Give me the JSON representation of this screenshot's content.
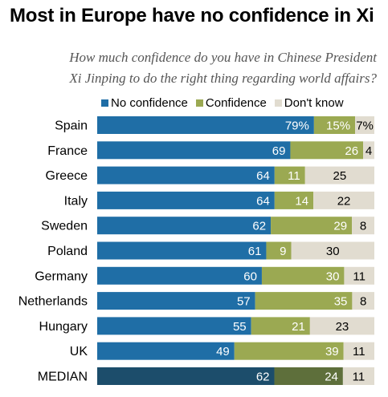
{
  "header": {
    "title": "Most in Europe have no confidence in Xi",
    "subtitle_line1": "How much confidence do you have in Chinese President",
    "subtitle_line2": "Xi Jinping to do the right thing regarding world affairs?"
  },
  "colors": {
    "no_confidence": "#1f6ea6",
    "confidence": "#9ba952",
    "dont_know": "#e1dcd0",
    "median_no_confidence": "#1c4d6b",
    "median_confidence": "#5e6f3b",
    "median_dont_know": "#e1dcd0"
  },
  "chart_data": {
    "type": "bar",
    "orientation": "horizontal",
    "stacked": true,
    "categories": [
      "Spain",
      "France",
      "Greece",
      "Italy",
      "Sweden",
      "Poland",
      "Germany",
      "Netherlands",
      "Hungary",
      "UK",
      "MEDIAN"
    ],
    "series": [
      {
        "name": "No confidence",
        "values": [
          79,
          69,
          64,
          64,
          62,
          61,
          60,
          57,
          55,
          49,
          62
        ],
        "labels": [
          "79%",
          "69",
          "64",
          "64",
          "62",
          "61",
          "60",
          "57",
          "55",
          "49",
          "62"
        ]
      },
      {
        "name": "Confidence",
        "values": [
          15,
          26,
          11,
          14,
          29,
          9,
          30,
          35,
          21,
          39,
          24
        ],
        "labels": [
          "15%",
          "26",
          "11",
          "14",
          "29",
          "9",
          "30",
          "35",
          "21",
          "39",
          "24"
        ]
      },
      {
        "name": "Don't know",
        "values": [
          7,
          4,
          25,
          22,
          8,
          30,
          11,
          8,
          23,
          11,
          11
        ],
        "labels": [
          "7%",
          "4",
          "25",
          "22",
          "8",
          "30",
          "11",
          "8",
          "23",
          "11",
          "11"
        ]
      }
    ],
    "legend_position": "top",
    "xlim": [
      0,
      100
    ]
  }
}
